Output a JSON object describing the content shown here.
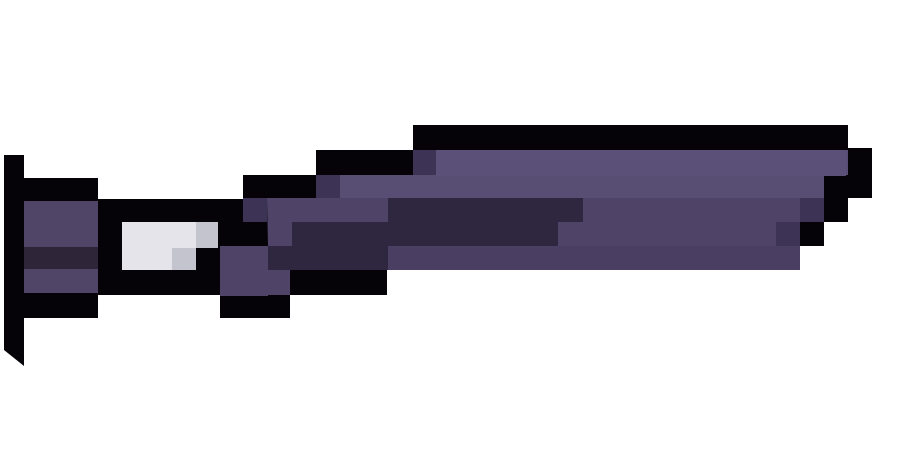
{
  "sprite": {
    "icon": "pixel-sword-icon",
    "colors": {
      "outline": "#050307",
      "blade_mid": "#4f4468",
      "blade_light": "#5b5078",
      "blade_dark": "#2f2740",
      "blade_edge": "#3d3354",
      "guard": "#504566",
      "guard_dark": "#2e2638",
      "grip_light": "#e4e4ea",
      "grip_mid": "#c4c4cf",
      "background": "#ffffff"
    }
  }
}
